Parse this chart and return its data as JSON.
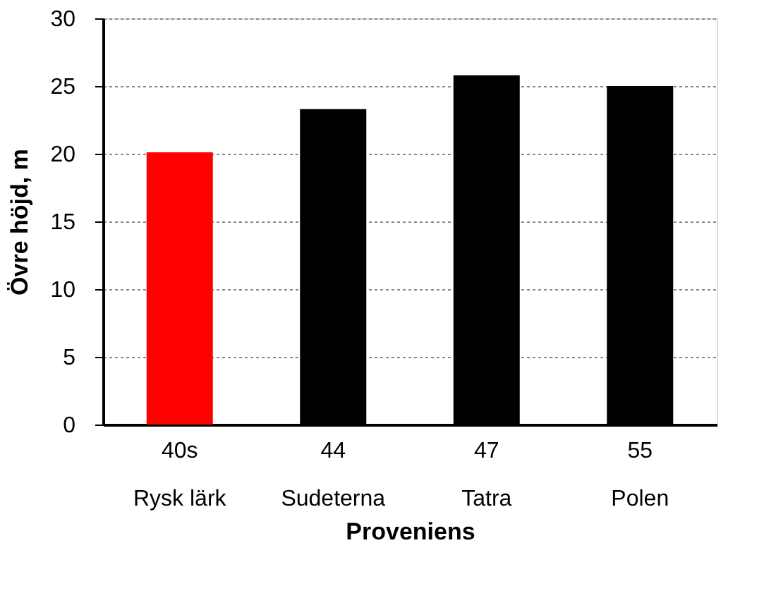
{
  "chart_data": {
    "type": "bar",
    "xlabel": "Proveniens",
    "ylabel": "Övre höjd, m",
    "categories": [
      "40s\nRysk lärk",
      "44\nSudeterna",
      "47\nTatra",
      "55\nPolen"
    ],
    "values": [
      20.1,
      23.3,
      25.8,
      25.0
    ],
    "colors": [
      "#ff0000",
      "#000000",
      "#000000",
      "#000000"
    ],
    "ylim": [
      0,
      30
    ],
    "yticks": [
      0,
      5,
      10,
      15,
      20,
      25,
      30
    ],
    "grid": "y",
    "legend": false
  }
}
